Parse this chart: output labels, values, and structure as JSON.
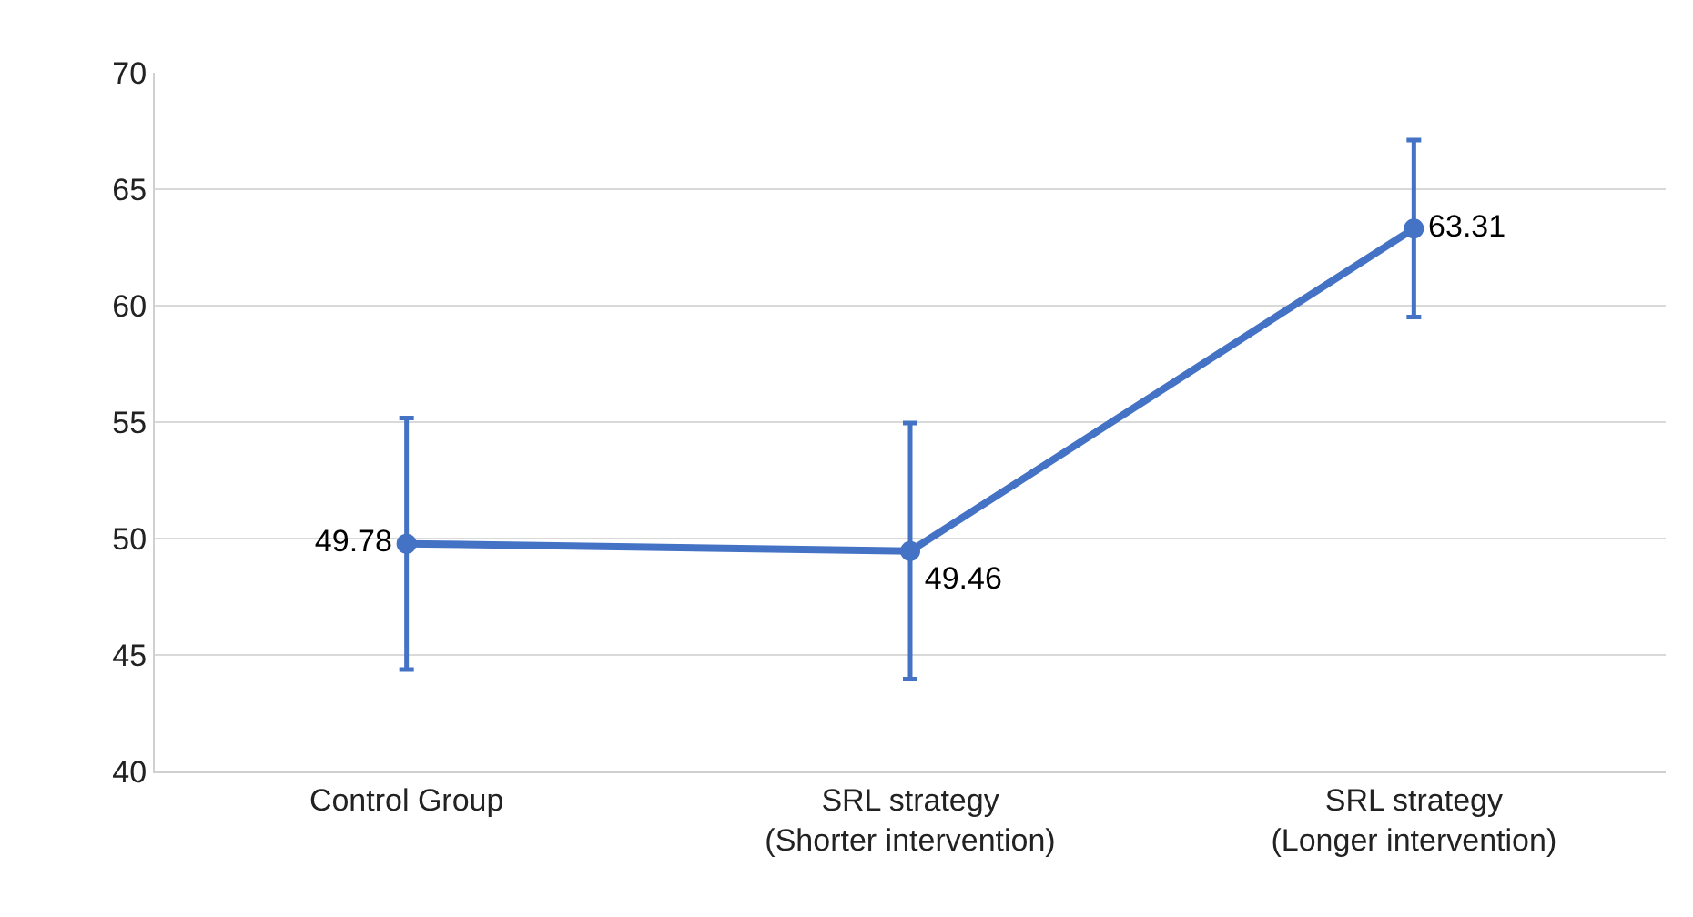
{
  "chart_data": {
    "type": "line",
    "categories": [
      "Control Group",
      "SRL strategy\n(Shorter intervention)",
      "SRL strategy\n(Longer intervention)"
    ],
    "series": [
      {
        "color": "#4472c4",
        "values": [
          49.78,
          49.46,
          63.31
        ],
        "errors": [
          5.4,
          5.5,
          3.8
        ]
      }
    ],
    "ylim": [
      40,
      70
    ],
    "yticks": [
      40,
      45,
      50,
      55,
      60,
      65,
      70
    ],
    "grid": "y",
    "marker": "circle",
    "line_style": "solid",
    "data_labels": true,
    "legend": false
  }
}
